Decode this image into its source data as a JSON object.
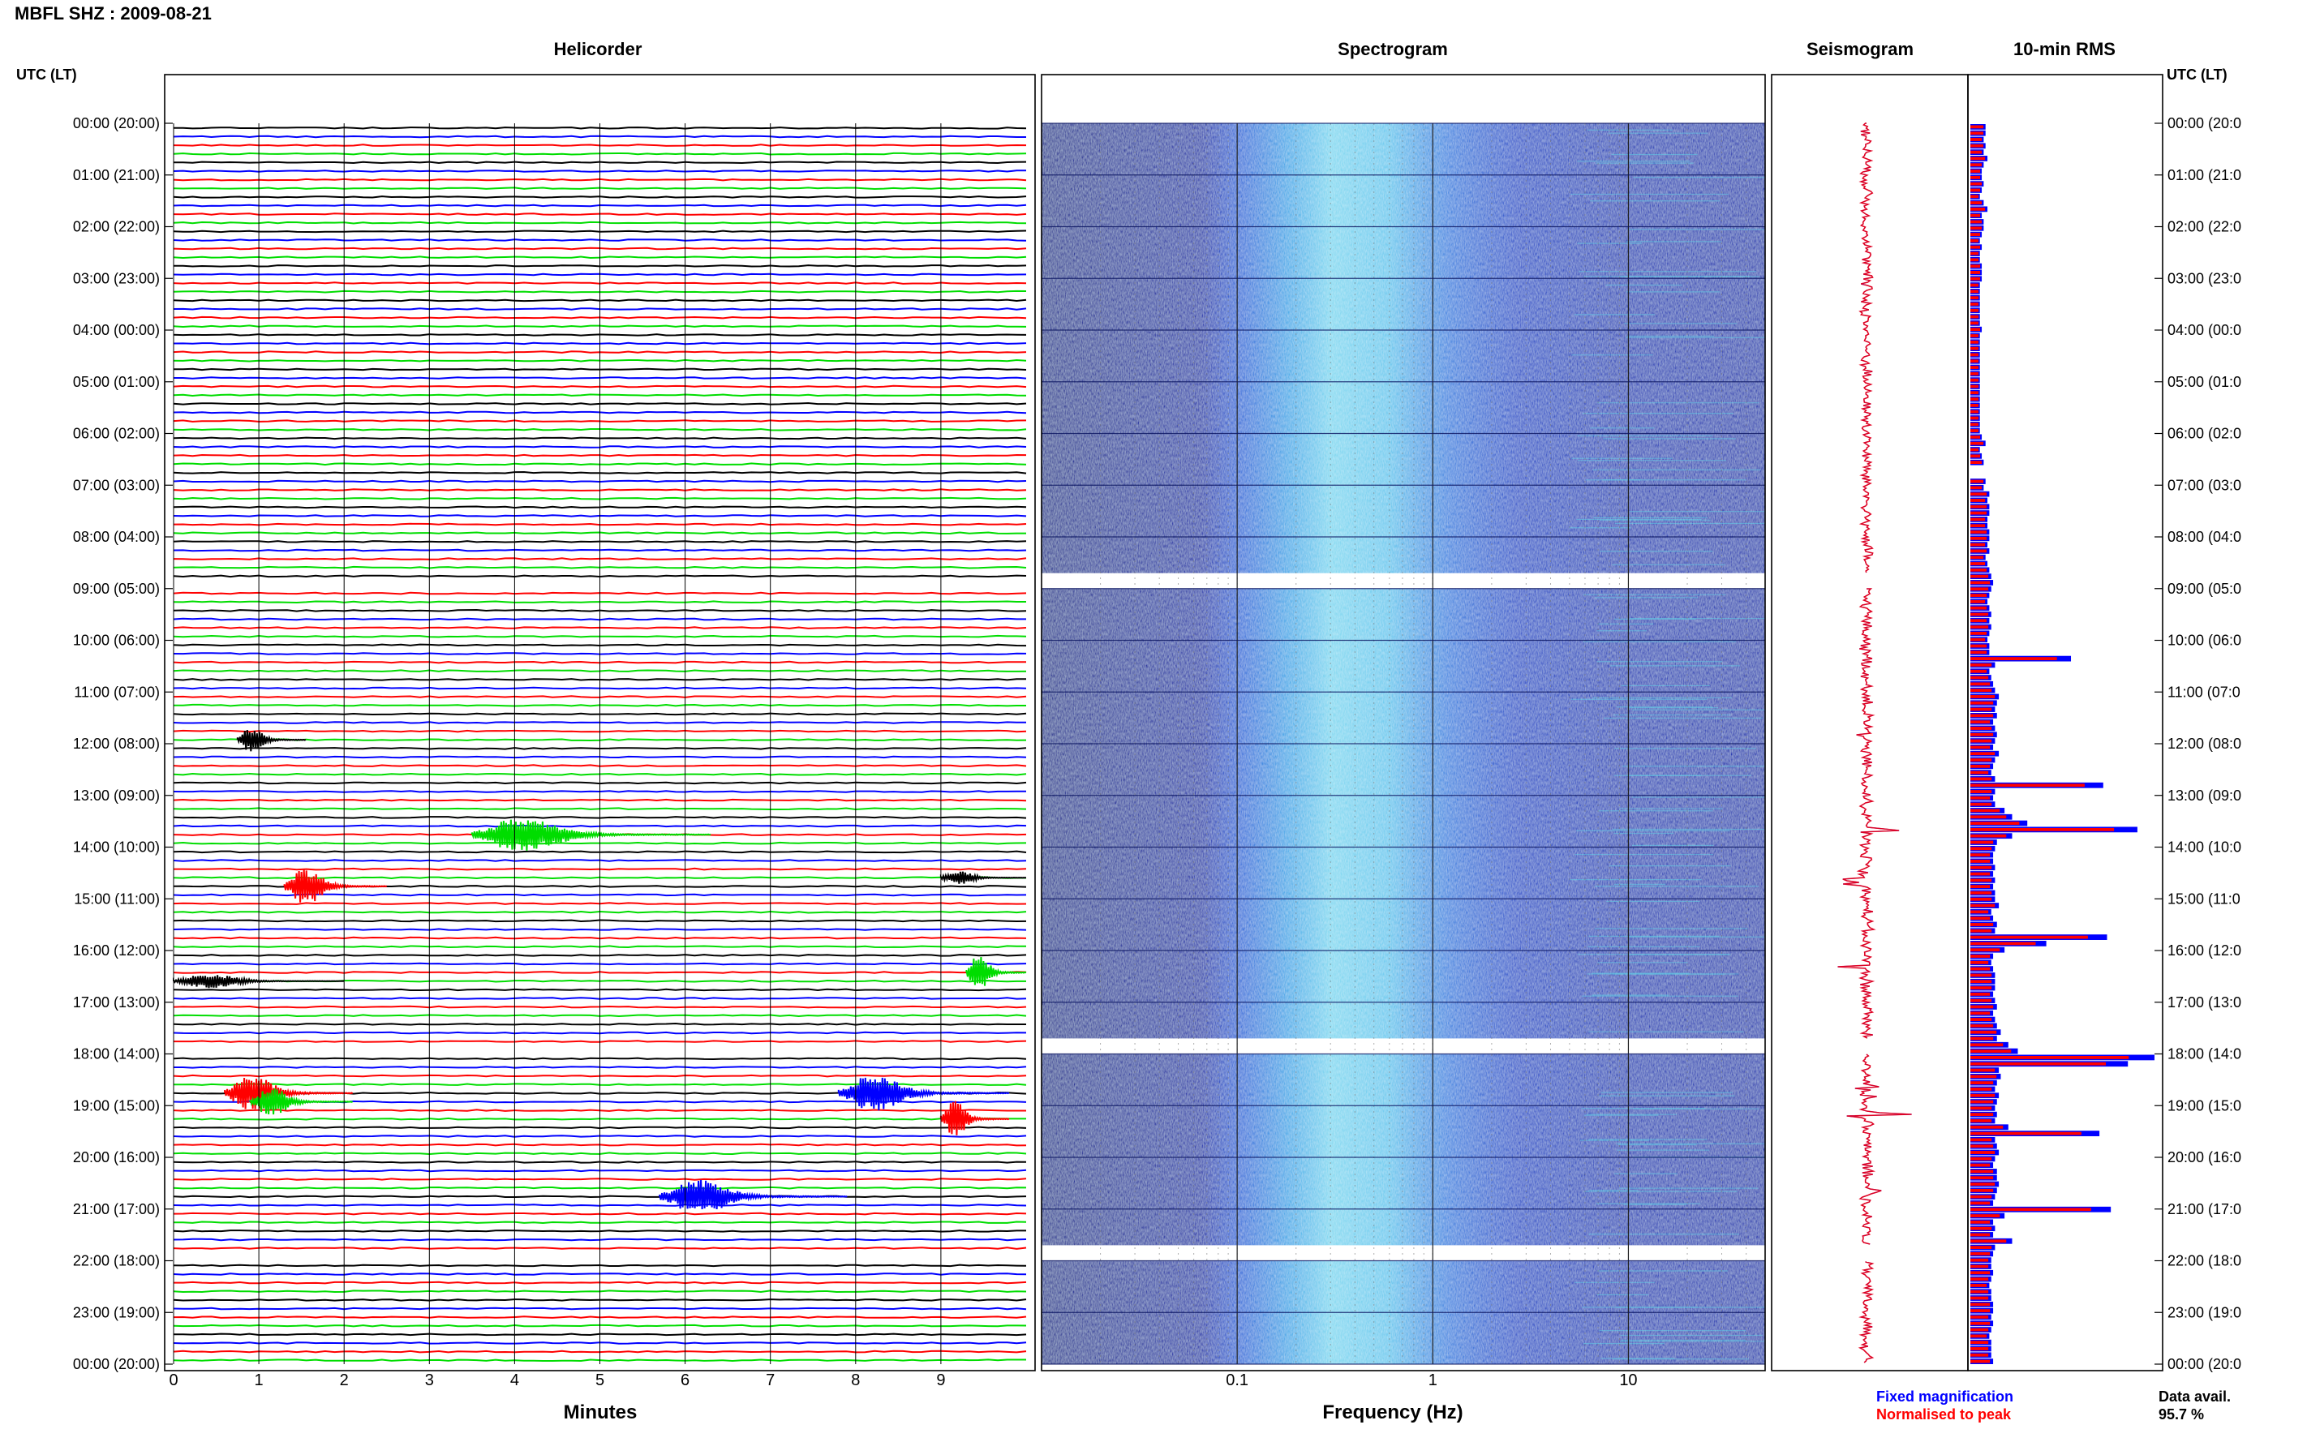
{
  "page": {
    "title": "MBFL SHZ : 2009-08-21",
    "panels": {
      "helicorder": "Helicorder",
      "spectrogram": "Spectrogram",
      "seismogram": "Seismogram",
      "rms": "10-min RMS"
    },
    "utc_label_left": "UTC (LT)",
    "utc_label_right": "UTC (LT)",
    "xlabel_helicorder": "Minutes",
    "xlabel_spectrogram": "Frequency (Hz)",
    "legend": {
      "fixed": "Fixed magnification",
      "normalised": "Normalised to peak",
      "fixed_color": "#0000ff",
      "normalised_color": "#ff0000"
    },
    "data_avail_label": "Data avail.",
    "data_avail_value": "95.7 %"
  },
  "chart_data": {
    "type": "heatmap",
    "time_labels": [
      "00:00 (20:00)",
      "01:00 (21:00)",
      "02:00 (22:00)",
      "03:00 (23:00)",
      "04:00 (00:00)",
      "05:00 (01:00)",
      "06:00 (02:00)",
      "07:00 (03:00)",
      "08:00 (04:00)",
      "09:00 (05:00)",
      "10:00 (06:00)",
      "11:00 (07:00)",
      "12:00 (08:00)",
      "13:00 (09:00)",
      "14:00 (10:00)",
      "15:00 (11:00)",
      "16:00 (12:00)",
      "17:00 (13:00)",
      "18:00 (14:00)",
      "19:00 (15:00)",
      "20:00 (16:00)",
      "21:00 (17:00)",
      "22:00 (18:00)",
      "23:00 (19:00)",
      "00:00 (20:00)"
    ],
    "time_labels_right": [
      "00:00 (20:0",
      "01:00 (21:0",
      "02:00 (22:0",
      "03:00 (23:0",
      "04:00 (00:0",
      "05:00 (01:0",
      "06:00 (02:0",
      "07:00 (03:0",
      "08:00 (04:0",
      "09:00 (05:0",
      "10:00 (06:0",
      "11:00 (07:0",
      "12:00 (08:0",
      "13:00 (09:0",
      "14:00 (10:0",
      "15:00 (11:0",
      "16:00 (12:0",
      "17:00 (13:0",
      "18:00 (14:0",
      "19:00 (15:0",
      "20:00 (16:0",
      "21:00 (17:0",
      "22:00 (18:0",
      "23:00 (19:0",
      "00:00 (20:0"
    ],
    "helicorder": {
      "xlabel": "Minutes",
      "xticks": [
        0,
        1,
        2,
        3,
        4,
        5,
        6,
        7,
        8,
        9
      ],
      "xlim": [
        0,
        10
      ],
      "trace_colors": [
        "#000000",
        "#0000ff",
        "#ff0000",
        "#00dd00"
      ],
      "traces_per_hour": 6,
      "events": [
        {
          "hour": 11,
          "slot": 5,
          "minute": 0.75,
          "duration": 0.8,
          "amp": 0.9,
          "color": "#000000"
        },
        {
          "hour": 13,
          "slot": 4,
          "minute": 3.5,
          "duration": 2.8,
          "amp": 1.2,
          "color": "#00dd00"
        },
        {
          "hour": 14,
          "slot": 4,
          "minute": 1.3,
          "duration": 1.2,
          "amp": 1.3,
          "color": "#ff0000"
        },
        {
          "hour": 14,
          "slot": 3,
          "minute": 9.0,
          "duration": 1.0,
          "amp": 0.5,
          "color": "#000000"
        },
        {
          "hour": 16,
          "slot": 2,
          "minute": 9.3,
          "duration": 0.7,
          "amp": 1.4,
          "color": "#00dd00"
        },
        {
          "hour": 16,
          "slot": 3,
          "minute": 0.0,
          "duration": 2.0,
          "amp": 0.5,
          "color": "#000000"
        },
        {
          "hour": 18,
          "slot": 4,
          "minute": 0.6,
          "duration": 1.5,
          "amp": 1.4,
          "color": "#ff0000"
        },
        {
          "hour": 18,
          "slot": 5,
          "minute": 0.9,
          "duration": 1.2,
          "amp": 1.0,
          "color": "#00dd00"
        },
        {
          "hour": 18,
          "slot": 4,
          "minute": 7.8,
          "duration": 2.0,
          "amp": 1.3,
          "color": "#0000ff"
        },
        {
          "hour": 19,
          "slot": 1,
          "minute": 9.0,
          "duration": 0.8,
          "amp": 1.3,
          "color": "#ff0000"
        },
        {
          "hour": 20,
          "slot": 4,
          "minute": 5.7,
          "duration": 2.2,
          "amp": 1.2,
          "color": "#0000ff"
        }
      ]
    },
    "spectrogram": {
      "xlabel": "Frequency (Hz)",
      "xscale": "log",
      "xlim": [
        0.01,
        50
      ],
      "xtick_labels": [
        "0.1",
        "1",
        "10"
      ],
      "xtick_values": [
        0.1,
        1,
        10
      ],
      "data_gaps_hours": [
        8.7,
        17.7,
        21.7
      ]
    },
    "seismogram": {},
    "rms_10min": {
      "series": [
        {
          "name": "Fixed magnification",
          "color": "#0000ff"
        },
        {
          "name": "Normalised to peak",
          "color": "#ff0000"
        }
      ],
      "values": [
        0.08,
        0.08,
        0.07,
        0.08,
        0.07,
        0.09,
        0.07,
        0.06,
        0.06,
        0.07,
        0.06,
        0.05,
        0.07,
        0.09,
        0.06,
        0.07,
        0.07,
        0.06,
        0.05,
        0.06,
        0.05,
        0.05,
        0.06,
        0.06,
        0.06,
        0.05,
        0.05,
        0.05,
        0.05,
        0.05,
        0.05,
        0.05,
        0.06,
        0.05,
        0.05,
        0.05,
        0.05,
        0.05,
        0.05,
        0.05,
        0.05,
        0.05,
        0.05,
        0.05,
        0.05,
        0.05,
        0.05,
        0.05,
        0.05,
        0.06,
        0.08,
        0.05,
        0.06,
        0.07,
        0.0,
        0.0,
        0.08,
        0.07,
        0.1,
        0.09,
        0.1,
        0.1,
        0.09,
        0.09,
        0.1,
        0.1,
        0.09,
        0.1,
        0.08,
        0.09,
        0.1,
        0.11,
        0.12,
        0.11,
        0.1,
        0.09,
        0.1,
        0.11,
        0.1,
        0.11,
        0.1,
        0.09,
        0.1,
        0.1,
        0.53,
        0.13,
        0.1,
        0.11,
        0.12,
        0.13,
        0.15,
        0.14,
        0.13,
        0.14,
        0.12,
        0.13,
        0.14,
        0.13,
        0.12,
        0.15,
        0.13,
        0.12,
        0.11,
        0.13,
        0.7,
        0.13,
        0.12,
        0.13,
        0.18,
        0.22,
        0.3,
        0.88,
        0.22,
        0.14,
        0.13,
        0.12,
        0.12,
        0.13,
        0.12,
        0.13,
        0.12,
        0.13,
        0.13,
        0.15,
        0.11,
        0.12,
        0.14,
        0.13,
        0.72,
        0.4,
        0.18,
        0.12,
        0.11,
        0.12,
        0.13,
        0.13,
        0.13,
        0.12,
        0.13,
        0.14,
        0.12,
        0.13,
        0.14,
        0.16,
        0.14,
        0.2,
        0.25,
        0.97,
        0.83,
        0.15,
        0.16,
        0.14,
        0.13,
        0.15,
        0.14,
        0.13,
        0.14,
        0.13,
        0.2,
        0.68,
        0.13,
        0.14,
        0.15,
        0.13,
        0.12,
        0.14,
        0.14,
        0.15,
        0.14,
        0.13,
        0.12,
        0.74,
        0.18,
        0.12,
        0.13,
        0.12,
        0.22,
        0.13,
        0.12,
        0.11,
        0.11,
        0.12,
        0.11,
        0.1,
        0.11,
        0.11,
        0.12,
        0.12,
        0.11,
        0.12,
        0.11,
        0.1,
        0.11,
        0.11,
        0.11,
        0.12
      ]
    },
    "data_availability": "95.7 %"
  }
}
